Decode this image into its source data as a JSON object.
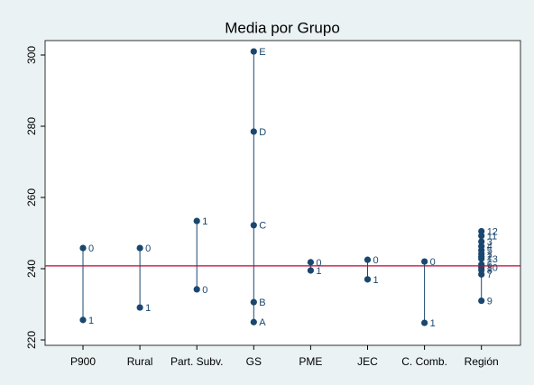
{
  "chart_data": {
    "type": "dot",
    "title": "Media por Grupo",
    "color": "#1a476f",
    "refline": 240.8,
    "refline_color": "#c10534",
    "ylim": [
      220,
      302
    ],
    "yticks": [
      220,
      240,
      260,
      280,
      300
    ],
    "grid": false,
    "groups": [
      {
        "name": "P900",
        "points": [
          {
            "label": "0",
            "value": 245.8
          },
          {
            "label": "1",
            "value": 225.6
          }
        ]
      },
      {
        "name": "Rural",
        "points": [
          {
            "label": "0",
            "value": 245.8
          },
          {
            "label": "1",
            "value": 229.1
          }
        ]
      },
      {
        "name": "Part. Subv.",
        "points": [
          {
            "label": "1",
            "value": 253.4
          },
          {
            "label": "0",
            "value": 234.2
          }
        ]
      },
      {
        "name": "GS",
        "points": [
          {
            "label": "E",
            "value": 301
          },
          {
            "label": "D",
            "value": 278.5
          },
          {
            "label": "C",
            "value": 252.2
          },
          {
            "label": "B",
            "value": 230.6
          },
          {
            "label": "A",
            "value": 225
          }
        ]
      },
      {
        "name": "PME",
        "points": [
          {
            "label": "0",
            "value": 241.8
          },
          {
            "label": "1",
            "value": 239.5
          }
        ]
      },
      {
        "name": "JEC",
        "points": [
          {
            "label": "0",
            "value": 242.5
          },
          {
            "label": "1",
            "value": 237
          }
        ]
      },
      {
        "name": "C. Comb.",
        "points": [
          {
            "label": "0",
            "value": 242
          },
          {
            "label": "1",
            "value": 224.8
          }
        ]
      },
      {
        "name": "Región",
        "points": [
          {
            "label": "12",
            "value": 250.5
          },
          {
            "label": "11",
            "value": 249.2
          },
          {
            "label": "3",
            "value": 247.6
          },
          {
            "label": "4",
            "value": 246.3
          },
          {
            "label": "5",
            "value": 245.2
          },
          {
            "label": "1",
            "value": 244.2
          },
          {
            "label": "2",
            "value": 243.4
          },
          {
            "label": "13",
            "value": 242.8
          },
          {
            "label": "6",
            "value": 241.2
          },
          {
            "label": "10",
            "value": 240.3
          },
          {
            "label": "8",
            "value": 239.6
          },
          {
            "label": "7",
            "value": 238.4
          },
          {
            "label": "9",
            "value": 231
          }
        ]
      }
    ]
  }
}
